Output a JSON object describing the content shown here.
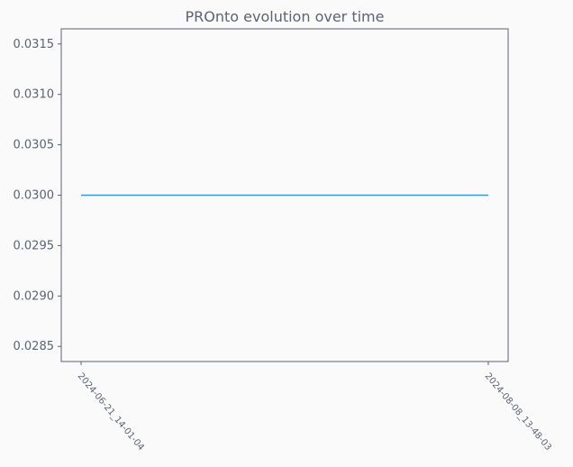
{
  "chart_data": {
    "type": "line",
    "title": "PROnto evolution over time",
    "xlabel": "",
    "ylabel": "",
    "x": [
      "2024-06-21_14-01-04",
      "2024-08-08_13-48-03"
    ],
    "series": [
      {
        "values": [
          0.03,
          0.03
        ],
        "color": "#3a9ad9"
      }
    ],
    "ylim": [
      0.02835,
      0.03165
    ],
    "yticks": [
      "0.0285",
      "0.0290",
      "0.0295",
      "0.0300",
      "0.0305",
      "0.0310",
      "0.0315"
    ],
    "grid": false,
    "legend": "none",
    "colors": {
      "background": "#fafafa",
      "axis": "#5c6078",
      "text": "#5c6373"
    }
  }
}
